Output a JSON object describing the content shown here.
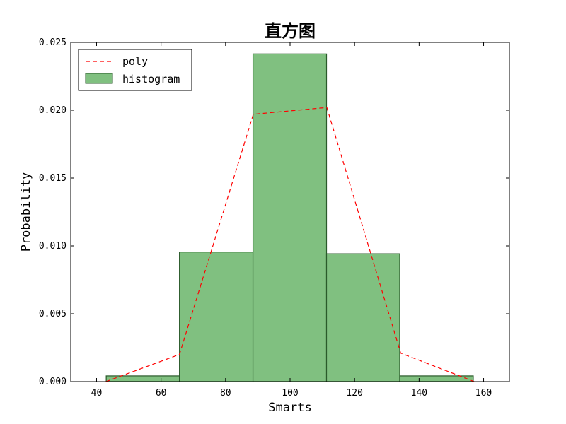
{
  "chart_data": {
    "type": "bar",
    "title": "直方图",
    "xlabel": "Smarts",
    "ylabel": "Probability",
    "xlim": [
      32,
      168
    ],
    "ylim": [
      0,
      0.025
    ],
    "xticks": [
      40,
      60,
      80,
      100,
      120,
      140,
      160
    ],
    "yticks": [
      0.0,
      0.005,
      0.01,
      0.015,
      0.02,
      0.025
    ],
    "xtick_labels": [
      "40",
      "60",
      "80",
      "100",
      "120",
      "140",
      "160"
    ],
    "ytick_labels": [
      "0.000",
      "0.005",
      "0.010",
      "0.015",
      "0.020",
      "0.025"
    ],
    "grid": false,
    "legend_position": "top-left",
    "series": [
      {
        "name": "poly",
        "kind": "line",
        "style": "dashed",
        "color": "#ff0000",
        "x": [
          42.9,
          65.7,
          88.6,
          111.4,
          134.3,
          157.1
        ],
        "y": [
          0.0,
          0.002,
          0.0197,
          0.0202,
          0.0021,
          0.0
        ]
      },
      {
        "name": "histogram",
        "kind": "bar",
        "color": "#80c080",
        "edge_color": "#2a5a2a",
        "bins": [
          {
            "x0": 43.0,
            "x1": 65.7,
            "value": 0.00042
          },
          {
            "x0": 65.7,
            "x1": 88.5,
            "value": 0.00955
          },
          {
            "x0": 88.5,
            "x1": 111.3,
            "value": 0.02415
          },
          {
            "x0": 111.3,
            "x1": 134.0,
            "value": 0.00942
          },
          {
            "x0": 134.0,
            "x1": 156.8,
            "value": 0.00042
          }
        ]
      }
    ]
  }
}
